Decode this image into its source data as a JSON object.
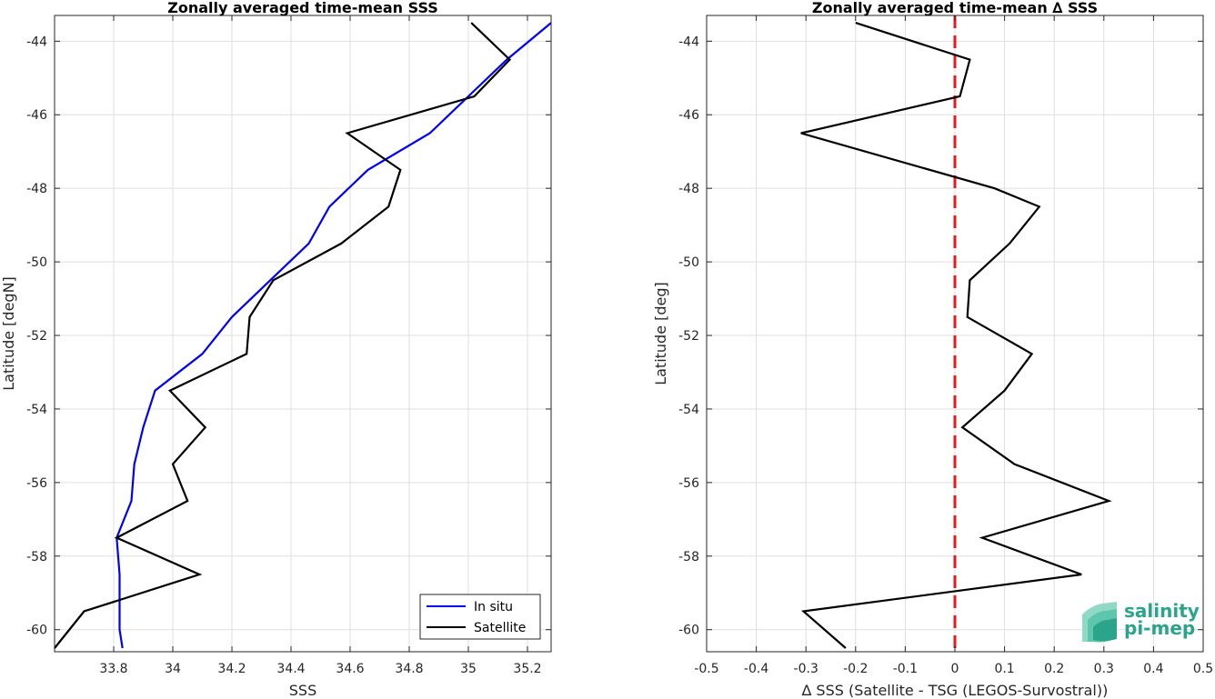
{
  "chart_data": [
    {
      "type": "line",
      "title": "Zonally averaged time-mean SSS",
      "xlabel": "SSS",
      "ylabel": "Latitude [degN]",
      "xlim": [
        33.6,
        35.28
      ],
      "ylim": [
        -60.6,
        -43.3
      ],
      "xticks": [
        33.8,
        34,
        34.2,
        34.4,
        34.6,
        34.8,
        35,
        35.2
      ],
      "xtick_labels": [
        "33.8",
        "34",
        "34.2",
        "34.4",
        "34.6",
        "34.8",
        "35",
        "35.2"
      ],
      "yticks": [
        -44,
        -46,
        -48,
        -50,
        -52,
        -54,
        -56,
        -58,
        -60
      ],
      "ytick_labels": [
        "-44",
        "-46",
        "-48",
        "-50",
        "-52",
        "-54",
        "-56",
        "-58",
        "-60"
      ],
      "grid": true,
      "legend_position": "bottom-right",
      "series": [
        {
          "name": "In situ",
          "color": "#0000ff",
          "x": [
            35.28,
            35.13,
            35.0,
            34.87,
            34.66,
            34.53,
            34.46,
            34.33,
            34.2,
            34.1,
            33.94,
            33.9,
            33.87,
            33.86,
            33.81,
            33.82,
            33.82,
            33.82,
            33.83
          ],
          "y": [
            -43.5,
            -44.5,
            -45.5,
            -46.5,
            -47.5,
            -48.5,
            -49.5,
            -50.5,
            -51.5,
            -52.5,
            -53.5,
            -54.5,
            -55.5,
            -56.5,
            -57.5,
            -58.5,
            -59.5,
            -60.0,
            -60.5
          ]
        },
        {
          "name": "Satellite",
          "color": "#000000",
          "x": [
            35.01,
            35.14,
            35.02,
            34.59,
            34.77,
            34.73,
            34.57,
            34.34,
            34.26,
            34.25,
            33.99,
            34.11,
            34.0,
            34.05,
            33.81,
            34.09,
            33.7,
            33.6
          ],
          "y": [
            -43.5,
            -44.5,
            -45.5,
            -46.5,
            -47.5,
            -48.5,
            -49.5,
            -50.5,
            -51.5,
            -52.5,
            -53.5,
            -54.5,
            -55.5,
            -56.5,
            -57.5,
            -58.5,
            -59.5,
            -60.5
          ]
        }
      ]
    },
    {
      "type": "line",
      "title": "Zonally averaged time-mean ∆ SSS",
      "xlabel": "∆ SSS (Satellite - TSG (LEGOS-Survostral))",
      "ylabel": "Latitude [deg]",
      "xlim": [
        -0.5,
        0.5
      ],
      "ylim": [
        -60.6,
        -43.3
      ],
      "xticks": [
        -0.5,
        -0.4,
        -0.3,
        -0.2,
        -0.1,
        0,
        0.1,
        0.2,
        0.3,
        0.4,
        0.5
      ],
      "xtick_labels": [
        "-0.5",
        "-0.4",
        "-0.3",
        "-0.2",
        "-0.1",
        "0",
        "0.1",
        "0.2",
        "0.3",
        "0.4",
        "0.5"
      ],
      "yticks": [
        -44,
        -46,
        -48,
        -50,
        -52,
        -54,
        -56,
        -58,
        -60
      ],
      "ytick_labels": [
        "-44",
        "-46",
        "-48",
        "-50",
        "-52",
        "-54",
        "-56",
        "-58",
        "-60"
      ],
      "grid": true,
      "reference_line": {
        "x": 0,
        "color": "#e41a1c",
        "style": "dashed"
      },
      "series": [
        {
          "color": "#000000",
          "x": [
            -0.2,
            0.03,
            0.01,
            -0.31,
            0.08,
            0.17,
            0.11,
            0.03,
            0.025,
            0.155,
            0.1,
            0.015,
            0.12,
            0.31,
            0.055,
            0.255,
            -0.305,
            -0.22
          ],
          "y": [
            -43.5,
            -44.5,
            -45.5,
            -46.5,
            -48.0,
            -48.5,
            -49.5,
            -50.5,
            -51.5,
            -52.5,
            -53.5,
            -54.5,
            -55.5,
            -56.5,
            -57.5,
            -58.5,
            -59.5,
            -60.5
          ]
        }
      ]
    }
  ],
  "logo": {
    "line1": "salinity",
    "line2": "pi-mep",
    "color": "#2aa58c"
  }
}
